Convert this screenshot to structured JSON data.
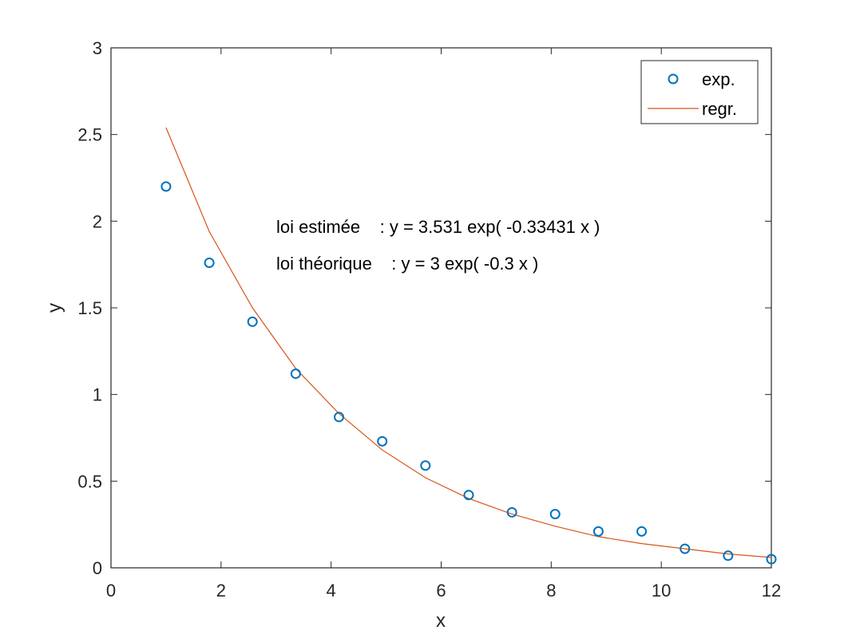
{
  "chart_data": {
    "type": "scatter",
    "title": "",
    "xlabel": "x",
    "ylabel": "y",
    "xlim": [
      0,
      12
    ],
    "ylim": [
      0,
      3
    ],
    "grid": false,
    "legend_position": "northeast",
    "xticks": [
      0,
      2,
      4,
      6,
      8,
      10,
      12
    ],
    "xtick_labels": [
      "0",
      "2",
      "4",
      "6",
      "8",
      "10",
      "12"
    ],
    "yticks": [
      0,
      0.5,
      1,
      1.5,
      2,
      2.5,
      3
    ],
    "ytick_labels": [
      "0",
      "0.5",
      "1",
      "1.5",
      "2",
      "2.5",
      "3"
    ],
    "x": [
      1.0,
      1.786,
      2.571,
      3.357,
      4.143,
      4.929,
      5.714,
      6.5,
      7.286,
      8.071,
      8.857,
      9.643,
      10.429,
      11.214,
      12.0
    ],
    "series": [
      {
        "name": "exp.",
        "type": "scatter",
        "marker": "circle",
        "color": "#0072BD",
        "values": [
          2.2,
          1.76,
          1.42,
          1.12,
          0.87,
          0.73,
          0.59,
          0.42,
          0.32,
          0.31,
          0.21,
          0.21,
          0.11,
          0.07,
          0.05
        ]
      },
      {
        "name": "regr.",
        "type": "line",
        "color": "#D95319",
        "values": [
          2.54,
          1.94,
          1.5,
          1.15,
          0.89,
          0.68,
          0.52,
          0.4,
          0.31,
          0.24,
          0.18,
          0.14,
          0.11,
          0.08,
          0.06
        ]
      }
    ],
    "annotations": [
      "loi estimée    : y = 3.531 exp( -0.33431 x )",
      "loi théorique    : y = 3 exp( -0.3 x )"
    ]
  },
  "legend": {
    "items": [
      {
        "label": "exp.",
        "color": "#0072BD"
      },
      {
        "label": "regr.",
        "color": "#D95319"
      }
    ]
  },
  "annotations": {
    "estimated": "loi estimée    : y = 3.531 exp( -0.33431 x )",
    "theoretical": "loi théorique    : y = 3 exp( -0.3 x )"
  },
  "axes": {
    "xlabel": "x",
    "ylabel": "y"
  }
}
